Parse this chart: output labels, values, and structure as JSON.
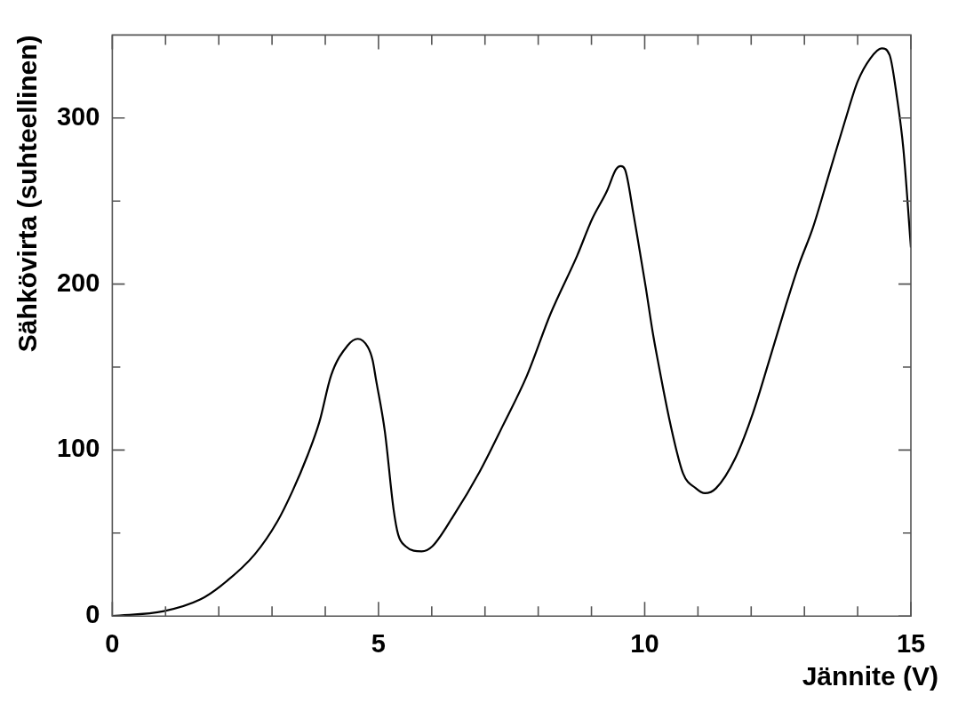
{
  "chart_data": {
    "type": "line",
    "xlabel": "Jännite (V)",
    "ylabel": "Sähkövirta (suhteellinen)",
    "x": [
      0,
      0.97,
      1.65,
      2.03,
      2.67,
      3.1,
      3.38,
      3.67,
      3.89,
      4.11,
      4.42,
      4.61,
      4.8,
      4.89,
      4.95,
      5.12,
      5.28,
      5.37,
      5.51,
      5.81,
      6.01,
      6.4,
      6.9,
      7.34,
      7.79,
      8.23,
      8.73,
      9.01,
      9.29,
      9.46,
      9.55,
      9.63,
      9.79,
      9.88,
      10.02,
      10.15,
      10.24,
      10.48,
      10.72,
      10.96,
      11.13,
      11.34,
      11.7,
      12.03,
      12.33,
      12.65,
      12.89,
      13.16,
      13.46,
      13.76,
      14,
      14.24,
      14.45,
      14.6,
      14.74,
      14.86,
      15
    ],
    "values": [
      0,
      3,
      10,
      18,
      37,
      57,
      75,
      97,
      117,
      145,
      163,
      167,
      162,
      154,
      143,
      111,
      65,
      49,
      42,
      39,
      42,
      60,
      87,
      115,
      145,
      182,
      217,
      239,
      256,
      269,
      271,
      269,
      242,
      225,
      198,
      171,
      155,
      116,
      86,
      77,
      74,
      77,
      95,
      122,
      153,
      187,
      211,
      234,
      266,
      298,
      322,
      336,
      342,
      338,
      312,
      281,
      222
    ],
    "color": "#000000",
    "marker": "none",
    "line_style": "solid",
    "xlim": [
      0,
      15
    ],
    "xticks": [
      0,
      {
        "value": 1,
        "label": null
      },
      {
        "value": 2,
        "label": null
      },
      {
        "value": 3,
        "label": null
      },
      {
        "value": 4,
        "label": null
      },
      5,
      {
        "value": 6,
        "label": null
      },
      {
        "value": 7,
        "label": null
      },
      {
        "value": 8,
        "label": null
      },
      {
        "value": 9,
        "label": null
      },
      10,
      {
        "value": 11,
        "label": null
      },
      {
        "value": 12,
        "label": null
      },
      {
        "value": 13,
        "label": null
      },
      {
        "value": 14,
        "label": null
      },
      15
    ],
    "ylim": [
      0,
      350
    ],
    "yticks": [
      0,
      {
        "value": 50,
        "label": null
      },
      100,
      {
        "value": 150,
        "label": null
      },
      200,
      {
        "value": 250,
        "label": null
      },
      300
    ],
    "grid": false,
    "legend": false
  }
}
